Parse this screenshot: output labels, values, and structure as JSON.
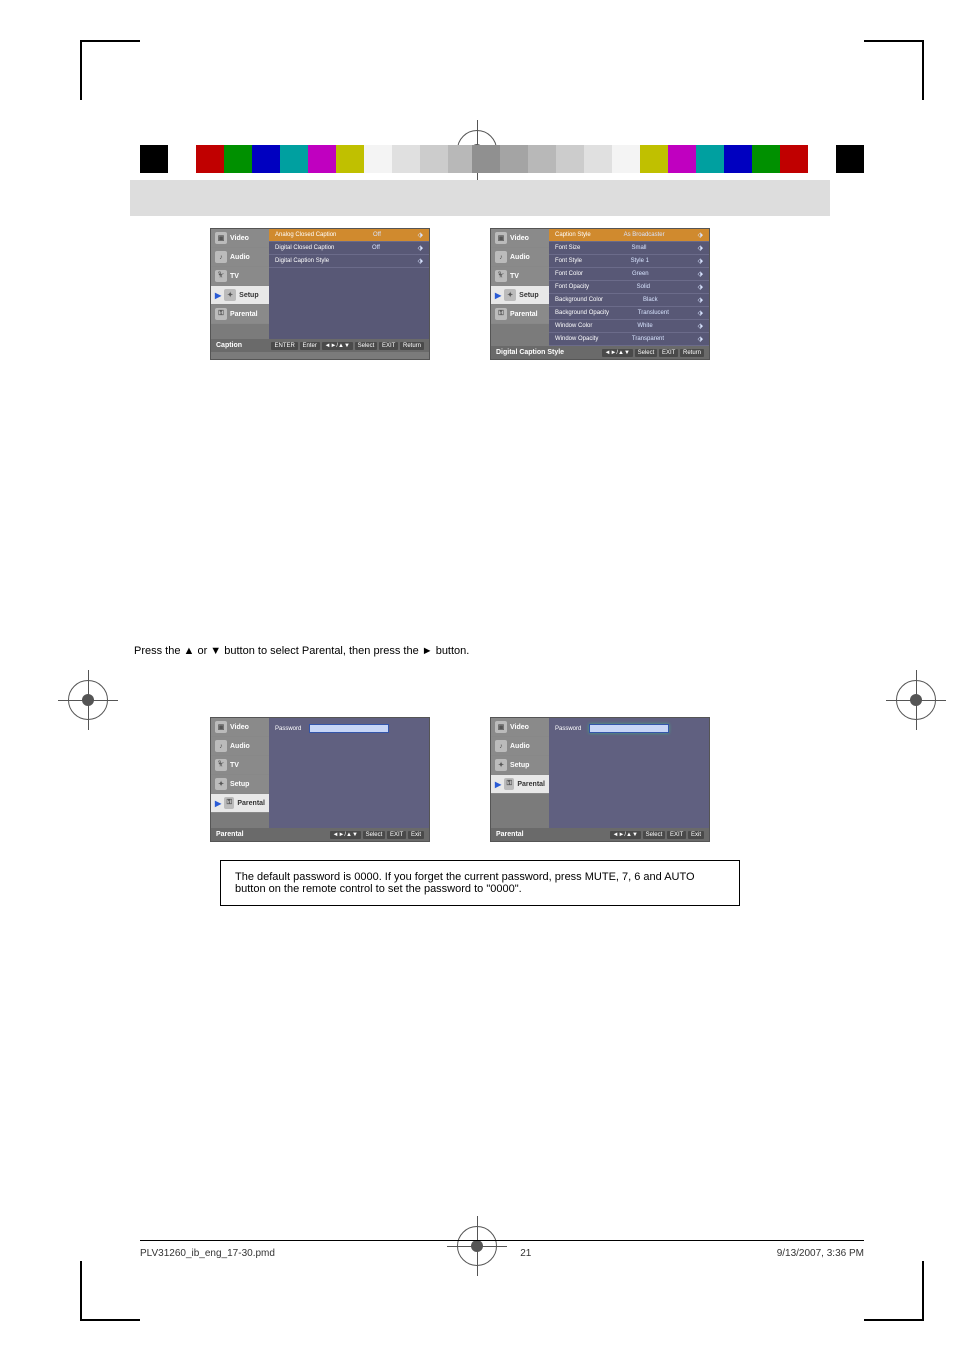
{
  "colorbar_left": [
    "#000000",
    "#ffffff",
    "#c00000",
    "#009000",
    "#0000c0",
    "#00a0a0",
    "#c000c0",
    "#c0c000"
  ],
  "graybar": [
    "#f4f4f4",
    "#e0e0e0",
    "#cccccc",
    "#b8b8b8",
    "#a4a4a4",
    "#909090"
  ],
  "colorbar_right_gray": [
    "#909090",
    "#a4a4a4",
    "#b8b8b8",
    "#cccccc",
    "#e0e0e0",
    "#f4f4f4"
  ],
  "colorbar_right": [
    "#c0c000",
    "#c000c0",
    "#00a0a0",
    "#0000c0",
    "#009000",
    "#c00000",
    "#ffffff",
    "#000000"
  ],
  "sidebar": {
    "video": "Video",
    "audio": "Audio",
    "tv": "TV",
    "setup": "Setup",
    "parental": "Parental"
  },
  "caption_menu": {
    "title": "Caption",
    "rows": [
      {
        "label": "Analog Closed Caption",
        "value": "Off",
        "hl": true
      },
      {
        "label": "Digital Closed Caption",
        "value": "Off",
        "hl": false
      },
      {
        "label": "Digital Caption Style",
        "value": "",
        "hl": false
      }
    ],
    "footer_keys": [
      "ENTER",
      "Enter",
      "◄►/▲▼",
      "Select",
      "EXIT",
      "Return"
    ]
  },
  "digital_style_menu": {
    "title": "Digital Caption Style",
    "rows": [
      {
        "label": "Caption Style",
        "value": "As Broadcaster",
        "hl": true
      },
      {
        "label": "Font Size",
        "value": "Small",
        "hl": false
      },
      {
        "label": "Font Style",
        "value": "Style 1",
        "hl": false
      },
      {
        "label": "Font Color",
        "value": "Green",
        "hl": false
      },
      {
        "label": "Font Opacity",
        "value": "Solid",
        "hl": false
      },
      {
        "label": "Background Color",
        "value": "Black",
        "hl": false
      },
      {
        "label": "Background Opacity",
        "value": "Translucent",
        "hl": false
      },
      {
        "label": "Window Color",
        "value": "White",
        "hl": false
      },
      {
        "label": "Window Opacity",
        "value": "Transparent",
        "hl": false
      }
    ],
    "footer_keys": [
      "◄►/▲▼",
      "Select",
      "EXIT",
      "Return"
    ]
  },
  "parental_menu": {
    "title": "Parental",
    "password_label": "Password",
    "footer_keys": [
      "◄►/▲▼",
      "Select",
      "EXIT",
      "Exit"
    ]
  },
  "text": {
    "navline": "Press the ▲ or ▼ button to select Parental, then press the ► button.",
    "note": "The default password is 0000. If you forget the current password, press MUTE, 7, 6 and AUTO button on the remote control to set the password to \"0000\"."
  },
  "footer": {
    "file": "PLV31260_ib_eng_17-30.pmd",
    "page": "21",
    "timestamp": "9/13/2007, 3:36 PM"
  }
}
